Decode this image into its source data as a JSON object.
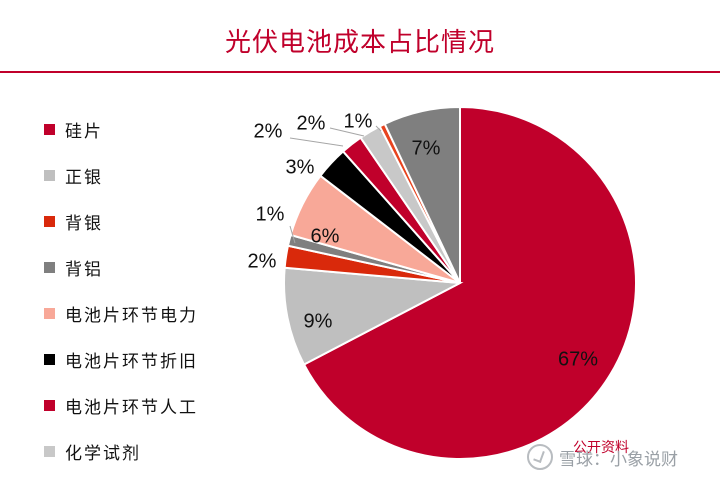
{
  "title": "光伏电池成本占比情况",
  "source_note": "公开资料",
  "watermark": "雪球：小象说财",
  "chart_data": {
    "type": "pie",
    "slices": [
      {
        "name": "硅片",
        "value": 67,
        "label": "67%",
        "color": "#c0002b"
      },
      {
        "name": "正银",
        "value": 9,
        "label": "9%",
        "color": "#bfbfbf"
      },
      {
        "name": "背银",
        "value": 2,
        "label": "2%",
        "color": "#d9290b"
      },
      {
        "name": "背铝",
        "value": 1,
        "label": "1%",
        "color": "#7f7f7f"
      },
      {
        "name": "电池片环节电力",
        "value": 6,
        "label": "6%",
        "color": "#f8a898"
      },
      {
        "name": "电池片环节折旧",
        "value": 3,
        "label": "3%",
        "color": "#000000"
      },
      {
        "name": "电池片环节人工",
        "value": 2,
        "label": "2%",
        "color": "#c0002b"
      },
      {
        "name": "化学试剂",
        "value": 2,
        "label": "2%",
        "color": "#c8c8c8"
      },
      {
        "name": "",
        "value": 0.5,
        "label": "1%",
        "color": "#e8431e"
      },
      {
        "name": "",
        "value": 7,
        "label": "7%",
        "color": "#7f7f7f"
      }
    ],
    "legend_position": "left"
  }
}
